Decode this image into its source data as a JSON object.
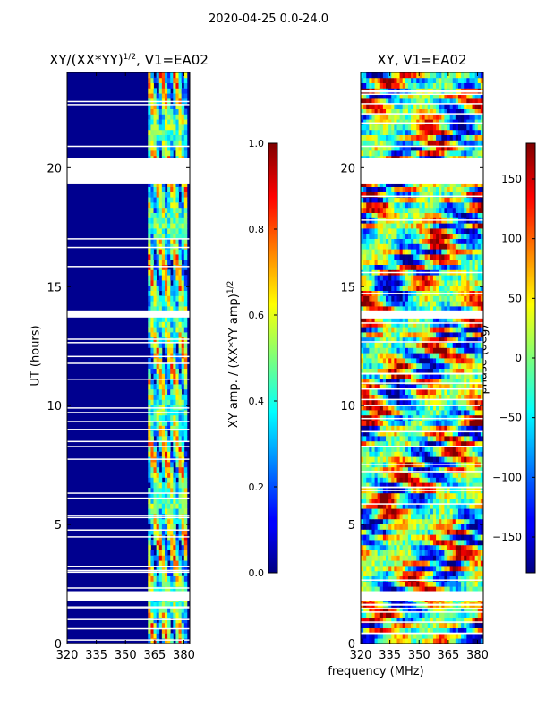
{
  "suptitle": "2020-04-25 0.0-24.0",
  "chart_data": [
    {
      "type": "heatmap",
      "title": "XY/(XX*YY)",
      "title_sup": "1/2",
      "title_suffix": ", V1=EA02",
      "xlabel": "",
      "ylabel": "UT (hours)",
      "x_range": [
        320,
        383
      ],
      "y_range": [
        0,
        24
      ],
      "xticks": [
        "320",
        "335",
        "350",
        "365",
        "380"
      ],
      "xtick_values": [
        320,
        335,
        350,
        365,
        380
      ],
      "yticks": [
        "0",
        "5",
        "10",
        "15",
        "20"
      ],
      "ytick_values": [
        0,
        5,
        10,
        15,
        20
      ],
      "colorbar": {
        "label": "XY amp. / (XX*YY amp)",
        "label_sup": "1/2",
        "range": [
          0.0,
          1.0
        ],
        "ticks": [
          "0.0",
          "0.2",
          "0.4",
          "0.6",
          "0.8",
          "1.0"
        ],
        "tick_values": [
          0.0,
          0.2,
          0.4,
          0.6,
          0.8,
          1.0
        ],
        "colormap": "jet"
      },
      "data_description": "low amplitude (~0.05) below 360 MHz; high amplitude band (0.4-0.9) from ~362 to 382 MHz",
      "bright_band_mhz": [
        362,
        382
      ],
      "missing_ut_hours": [
        [
          19.3,
          20.4
        ],
        [
          13.7,
          14.0
        ],
        [
          1.8,
          2.2
        ]
      ]
    },
    {
      "type": "heatmap",
      "title": "XY, V1=EA02",
      "xlabel": "frequency (MHz)",
      "ylabel": "",
      "x_range": [
        320,
        383
      ],
      "y_range": [
        0,
        24
      ],
      "xticks": [
        "320",
        "335",
        "350",
        "365",
        "380"
      ],
      "xtick_values": [
        320,
        335,
        350,
        365,
        380
      ],
      "yticks": [
        "0",
        "5",
        "10",
        "15",
        "20"
      ],
      "ytick_values": [
        0,
        5,
        10,
        15,
        20
      ],
      "colorbar": {
        "label": "phase (deg)",
        "range": [
          -180,
          180
        ],
        "ticks": [
          "−150",
          "−100",
          "−50",
          "0",
          "50",
          "100",
          "150"
        ],
        "tick_values": [
          -150,
          -100,
          -50,
          0,
          50,
          100,
          150
        ],
        "colormap": "jet"
      },
      "data_description": "phase spans full -180..180 deg range, mixed bands across frequency and time",
      "missing_ut_hours": [
        [
          19.3,
          20.4
        ],
        [
          13.7,
          14.0
        ],
        [
          1.8,
          2.2
        ]
      ]
    }
  ]
}
